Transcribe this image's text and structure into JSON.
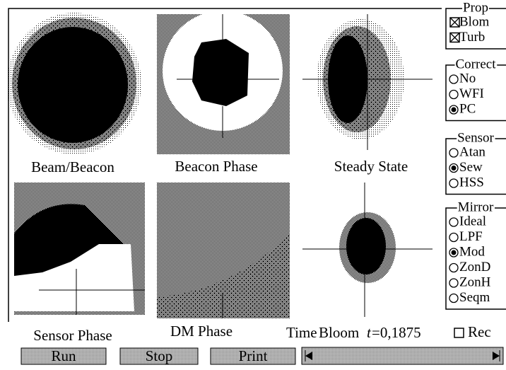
{
  "panels": [
    {
      "label": "Beam/Beacon"
    },
    {
      "label": "Beacon Phase"
    },
    {
      "label": "Steady State"
    },
    {
      "label": "Sensor Phase"
    },
    {
      "label": "DM Phase"
    }
  ],
  "status": {
    "time": "Time",
    "mode": "Bloom",
    "t_var": "t",
    "t_value": "=0,1875"
  },
  "record": {
    "label": "Rec",
    "checked": false
  },
  "buttons": [
    "Run",
    "Stop",
    "Print"
  ],
  "groups": [
    {
      "title": "Prop",
      "kind": "checkbox",
      "options": [
        {
          "label": "Blom",
          "checked": true
        },
        {
          "label": "Turb",
          "checked": true
        }
      ]
    },
    {
      "title": "Correct",
      "kind": "radio",
      "options": [
        {
          "label": "No",
          "checked": false
        },
        {
          "label": "WFI",
          "checked": false
        },
        {
          "label": "PC",
          "checked": true
        }
      ]
    },
    {
      "title": "Sensor",
      "kind": "radio",
      "options": [
        {
          "label": "Atan",
          "checked": false
        },
        {
          "label": "Sew",
          "checked": true
        },
        {
          "label": "HSS",
          "checked": false
        }
      ]
    },
    {
      "title": "Mirror",
      "kind": "radio",
      "options": [
        {
          "label": "Ideal",
          "checked": false
        },
        {
          "label": "LPF",
          "checked": false
        },
        {
          "label": "Mod",
          "checked": true
        },
        {
          "label": "ZonD",
          "checked": false
        },
        {
          "label": "ZonH",
          "checked": false
        },
        {
          "label": "Seqm",
          "checked": false
        }
      ]
    }
  ]
}
